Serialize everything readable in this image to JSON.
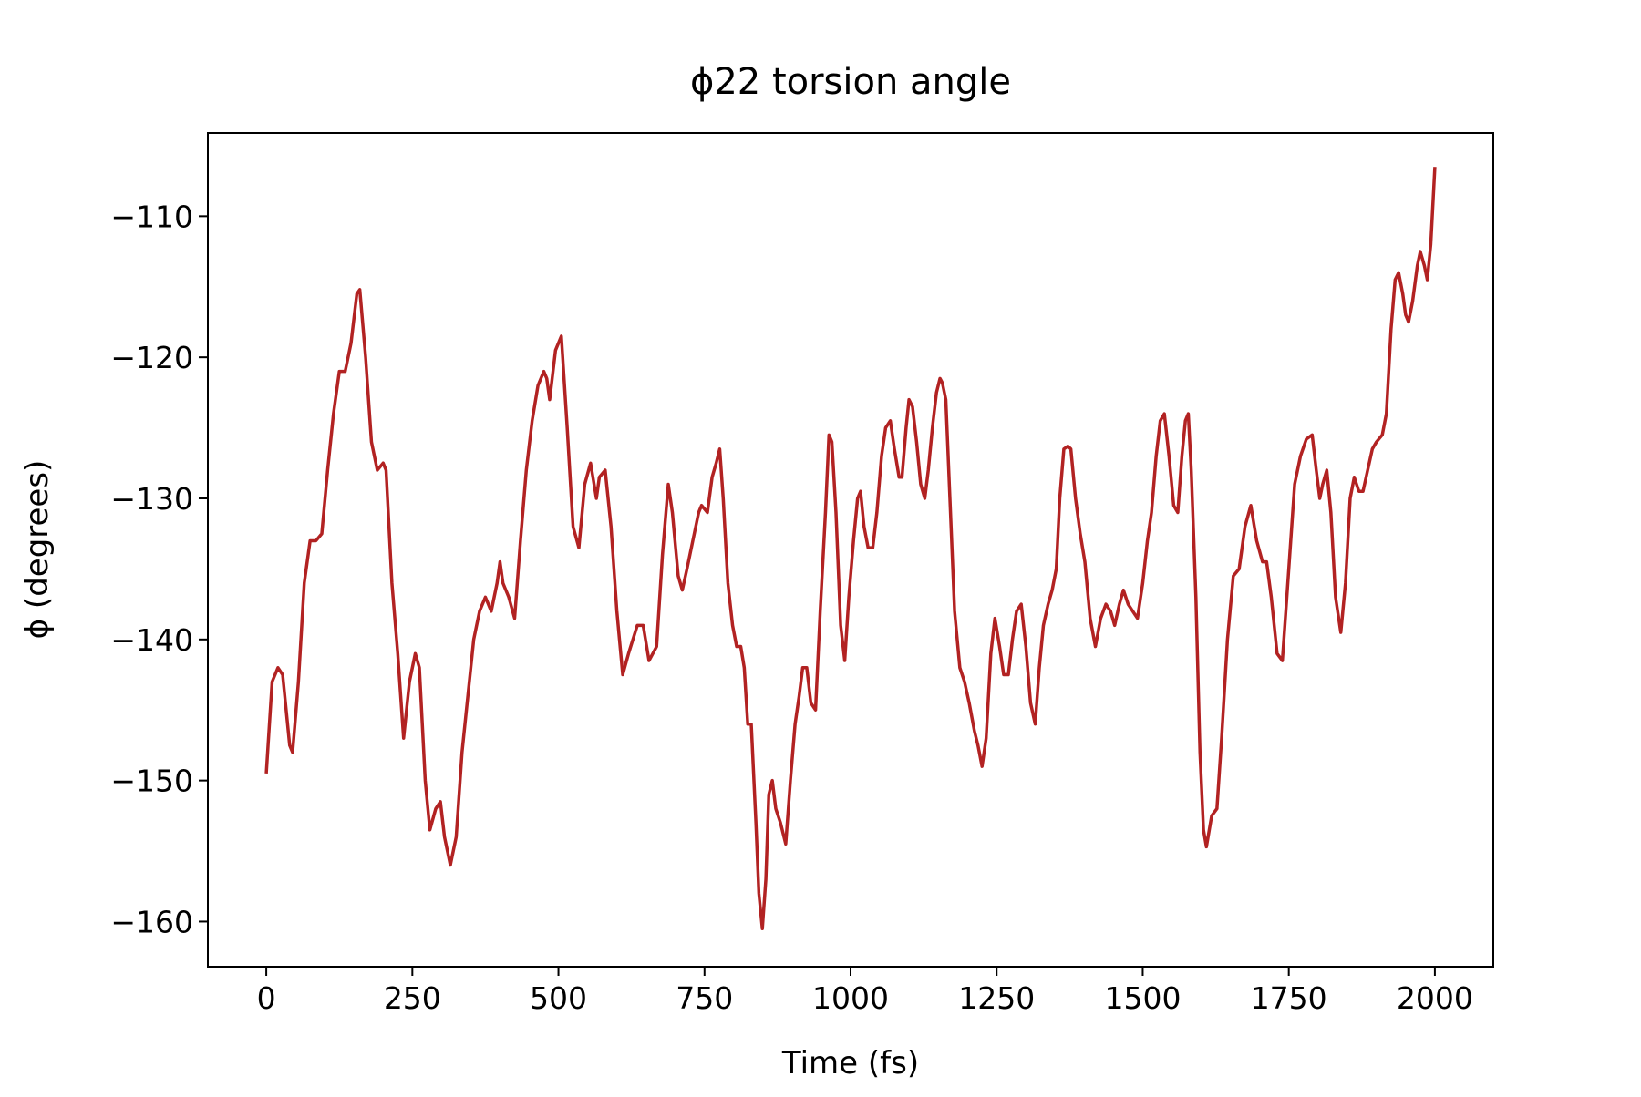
{
  "chart_data": {
    "type": "line",
    "title": "ϕ22 torsion angle",
    "xlabel": "Time (fs)",
    "ylabel": "ϕ (degrees)",
    "color": "#b22222",
    "xlim": [
      -100,
      2100
    ],
    "ylim": [
      -163.2,
      -104.1
    ],
    "xticks": [
      0,
      250,
      500,
      750,
      1000,
      1250,
      1500,
      1750,
      2000
    ],
    "yticks": [
      {
        "value": -160,
        "label": "−160"
      },
      {
        "value": -150,
        "label": "−150"
      },
      {
        "value": -140,
        "label": "−140"
      },
      {
        "value": -130,
        "label": "−130"
      },
      {
        "value": -120,
        "label": "−120"
      },
      {
        "value": -110,
        "label": "−110"
      }
    ],
    "x": [
      0,
      10,
      20,
      28,
      40,
      45,
      55,
      65,
      75,
      85,
      95,
      105,
      115,
      125,
      135,
      145,
      155,
      160,
      170,
      180,
      190,
      200,
      205,
      215,
      225,
      235,
      245,
      255,
      262,
      272,
      280,
      290,
      298,
      305,
      315,
      325,
      335,
      345,
      355,
      365,
      375,
      385,
      395,
      400,
      405,
      415,
      425,
      435,
      445,
      455,
      465,
      475,
      480,
      485,
      495,
      505,
      515,
      525,
      535,
      545,
      555,
      565,
      570,
      580,
      590,
      600,
      610,
      620,
      635,
      645,
      655,
      668,
      678,
      688,
      695,
      705,
      712,
      720,
      730,
      740,
      745,
      755,
      763,
      770,
      776,
      782,
      790,
      798,
      805,
      812,
      818,
      824,
      830,
      838,
      843,
      849,
      855,
      860,
      866,
      872,
      880,
      889,
      897,
      905,
      912,
      918,
      925,
      932,
      940,
      948,
      957,
      963,
      968,
      975,
      983,
      990,
      997,
      1005,
      1012,
      1017,
      1023,
      1030,
      1038,
      1045,
      1053,
      1060,
      1068,
      1075,
      1083,
      1088,
      1095,
      1100,
      1106,
      1113,
      1120,
      1127,
      1133,
      1140,
      1147,
      1153,
      1157,
      1163,
      1170,
      1178,
      1187,
      1195,
      1203,
      1212,
      1218,
      1225,
      1232,
      1240,
      1247,
      1255,
      1262,
      1270,
      1277,
      1284,
      1292,
      1300,
      1308,
      1316,
      1323,
      1330,
      1338,
      1345,
      1352,
      1358,
      1365,
      1372,
      1377,
      1385,
      1393,
      1401,
      1410,
      1419,
      1428,
      1437,
      1445,
      1452,
      1460,
      1467,
      1475,
      1483,
      1491,
      1500,
      1508,
      1515,
      1523,
      1530,
      1537,
      1545,
      1553,
      1560,
      1567,
      1573,
      1578,
      1583,
      1591,
      1598,
      1604,
      1609,
      1618,
      1627,
      1635,
      1645,
      1655,
      1665,
      1675,
      1685,
      1695,
      1705,
      1712,
      1720,
      1730,
      1739,
      1750,
      1760,
      1770,
      1780,
      1790,
      1797,
      1803,
      1808,
      1815,
      1822,
      1830,
      1839,
      1847,
      1855,
      1862,
      1870,
      1877,
      1885,
      1893,
      1900,
      1910,
      1917,
      1925,
      1932,
      1938,
      1945,
      1950,
      1955,
      1962,
      1970,
      1975,
      1982,
      1987,
      1993,
      2000
    ],
    "values": [
      -149.5,
      -143,
      -142,
      -142.5,
      -147.5,
      -148,
      -143,
      -136,
      -133,
      -133,
      -132.5,
      -128,
      -124,
      -121,
      -121,
      -119,
      -115.5,
      -115.2,
      -120,
      -126,
      -128,
      -127.5,
      -128,
      -136,
      -141,
      -147,
      -143,
      -141,
      -142,
      -150,
      -153.5,
      -152,
      -151.5,
      -154,
      -156,
      -154,
      -148,
      -144,
      -140,
      -138,
      -137,
      -138,
      -136,
      -134.5,
      -136,
      -137,
      -138.5,
      -133,
      -128,
      -124.5,
      -122,
      -121,
      -121.5,
      -123,
      -119.5,
      -118.5,
      -125,
      -132,
      -133.5,
      -129,
      -127.5,
      -130,
      -128.5,
      -128,
      -132,
      -138,
      -142.5,
      -141,
      -139,
      -139,
      -141.5,
      -140.5,
      -134,
      -129,
      -131,
      -135.5,
      -136.5,
      -135,
      -133,
      -131,
      -130.5,
      -131,
      -128.5,
      -127.5,
      -126.5,
      -130,
      -136,
      -139,
      -140.5,
      -140.5,
      -142,
      -146,
      -146,
      -153,
      -158,
      -160.5,
      -157,
      -151,
      -150,
      -152,
      -153,
      -154.5,
      -150,
      -146,
      -144,
      -142,
      -142,
      -144.5,
      -145,
      -138,
      -131,
      -125.5,
      -126,
      -131,
      -139,
      -141.5,
      -137,
      -133,
      -130,
      -129.5,
      -132,
      -133.5,
      -133.5,
      -131,
      -127,
      -125,
      -124.5,
      -126.5,
      -128.5,
      -128.5,
      -125,
      -123,
      -123.5,
      -126,
      -129,
      -130,
      -128,
      -125,
      -122.5,
      -121.5,
      -121.8,
      -123,
      -130,
      -138,
      -142,
      -143,
      -144.5,
      -146.5,
      -147.5,
      -149,
      -147,
      -141,
      -138.5,
      -140.5,
      -142.5,
      -142.5,
      -140,
      -138,
      -137.5,
      -140.5,
      -144.5,
      -146,
      -142,
      -139,
      -137.5,
      -136.5,
      -135,
      -130,
      -126.5,
      -126.3,
      -126.5,
      -130,
      -132.5,
      -134.5,
      -138.5,
      -140.5,
      -138.5,
      -137.5,
      -138,
      -139,
      -137.5,
      -136.5,
      -137.5,
      -138,
      -138.5,
      -136,
      -133,
      -131,
      -127,
      -124.5,
      -124,
      -127,
      -130.5,
      -131,
      -127,
      -124.5,
      -124,
      -128,
      -137,
      -148,
      -153.5,
      -154.7,
      -152.5,
      -152,
      -147,
      -140,
      -135.5,
      -135,
      -132,
      -130.5,
      -133,
      -134.5,
      -134.5,
      -137,
      -141,
      -141.5,
      -135,
      -129,
      -127,
      -125.8,
      -125.5,
      -128,
      -130,
      -129,
      -128,
      -131,
      -137,
      -139.5,
      -136,
      -130,
      -128.5,
      -129.5,
      -129.5,
      -128,
      -126.5,
      -126,
      -125.5,
      -124,
      -118,
      -114.5,
      -114,
      -115.5,
      -117,
      -117.5,
      -116,
      -113.5,
      -112.5,
      -113.5,
      -114.5,
      -112,
      -106.5
    ]
  }
}
